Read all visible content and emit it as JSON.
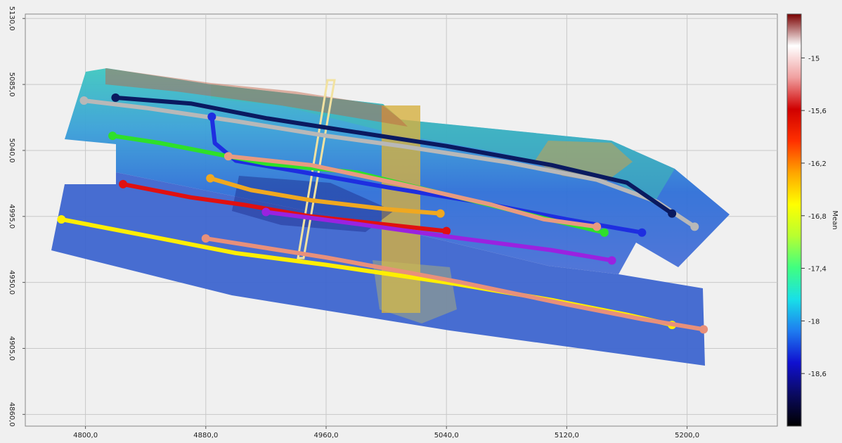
{
  "chart_data": {
    "type": "map",
    "x_ticks": [
      "4800,0",
      "4880,0",
      "4960,0",
      "5040,0",
      "5120,0",
      "5200,0"
    ],
    "y_ticks": [
      "5130,0",
      "5085,0",
      "5040,0",
      "4995,0",
      "4950,0",
      "4905,0",
      "4860,0"
    ],
    "xlim": [
      4760,
      5260
    ],
    "ylim": [
      4852,
      5133
    ],
    "grid": true,
    "colorbar": {
      "label": "Mean",
      "ticks": [
        "-15",
        "-15,6",
        "-16,2",
        "-16,8",
        "-17,4",
        "-18",
        "-18,6"
      ],
      "range": [
        -19.2,
        -14.5
      ],
      "colors": [
        "#000000",
        "#0a0a60",
        "#1010d0",
        "#1e7cf0",
        "#18e0e8",
        "#40ff80",
        "#b8ff30",
        "#ffff00",
        "#ffa500",
        "#ff3000",
        "#d00000",
        "#f0a0a0",
        "#ffffff",
        "#7a0000"
      ]
    },
    "tracks": [
      {
        "color": "#b8b8b8",
        "points": [
          [
            4799,
            5074
          ],
          [
            4840,
            5069
          ],
          [
            4900,
            5060
          ],
          [
            4960,
            5050
          ],
          [
            5010,
            5043
          ],
          [
            5080,
            5032
          ],
          [
            5140,
            5020
          ],
          [
            5180,
            5005
          ],
          [
            5205,
            4988
          ]
        ]
      },
      {
        "color": "#0a1a60",
        "points": [
          [
            4820,
            5076
          ],
          [
            4870,
            5072
          ],
          [
            4920,
            5062
          ],
          [
            4970,
            5054
          ],
          [
            5040,
            5043
          ],
          [
            5110,
            5030
          ],
          [
            5160,
            5018
          ],
          [
            5190,
            4997
          ]
        ]
      },
      {
        "color": "#1e2ee0",
        "points": [
          [
            4884,
            5063
          ],
          [
            4886,
            5045
          ],
          [
            4900,
            5033
          ],
          [
            4940,
            5026
          ],
          [
            5000,
            5015
          ],
          [
            5060,
            5005
          ],
          [
            5120,
            4993
          ],
          [
            5170,
            4984
          ]
        ]
      },
      {
        "color": "#2ee02a",
        "points": [
          [
            4818,
            5050
          ],
          [
            4850,
            5045
          ],
          [
            4890,
            5037
          ],
          [
            4920,
            5031
          ],
          [
            4980,
            5025
          ],
          [
            5040,
            5010
          ],
          [
            5100,
            4995
          ],
          [
            5145,
            4984
          ]
        ]
      },
      {
        "color": "#e89a80",
        "points": [
          [
            4895,
            5036
          ],
          [
            4950,
            5030
          ],
          [
            5010,
            5017
          ],
          [
            5070,
            5003
          ],
          [
            5105,
            4993
          ],
          [
            5140,
            4988
          ]
        ]
      },
      {
        "color": "#f0a820",
        "points": [
          [
            4883,
            5021
          ],
          [
            4910,
            5013
          ],
          [
            4950,
            5006
          ],
          [
            5000,
            5000
          ],
          [
            5036,
            4997
          ]
        ]
      },
      {
        "color": "#e01010",
        "points": [
          [
            4825,
            5017
          ],
          [
            4870,
            5008
          ],
          [
            4905,
            5003
          ],
          [
            4950,
            4995
          ],
          [
            4995,
            4990
          ],
          [
            5040,
            4985
          ]
        ]
      },
      {
        "color": "#9a22e0",
        "points": [
          [
            4920,
            4998
          ],
          [
            4980,
            4990
          ],
          [
            5050,
            4980
          ],
          [
            5110,
            4972
          ],
          [
            5150,
            4965
          ]
        ]
      },
      {
        "color": "#ffee00",
        "points": [
          [
            4784,
            4993
          ],
          [
            4840,
            4982
          ],
          [
            4900,
            4970
          ],
          [
            4960,
            4962
          ],
          [
            5040,
            4950
          ],
          [
            5110,
            4938
          ],
          [
            5160,
            4928
          ],
          [
            5190,
            4921
          ]
        ]
      },
      {
        "color": "#e8907a",
        "points": [
          [
            4880,
            4980
          ],
          [
            4960,
            4967
          ],
          [
            5050,
            4950
          ],
          [
            5120,
            4935
          ],
          [
            5170,
            4925
          ],
          [
            5211,
            4918
          ]
        ]
      }
    ],
    "profile_line_color": "#f2e2a0"
  }
}
